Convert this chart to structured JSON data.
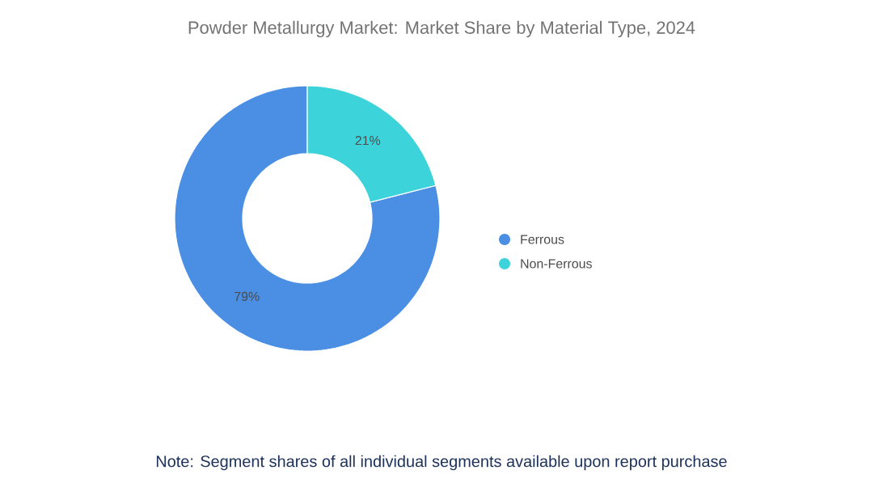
{
  "chart_data": {
    "type": "donut",
    "title": "Powder Metallurgy Market: Market Share by Material Type, 2024",
    "categories": [
      "Ferrous",
      "Non-Ferrous"
    ],
    "values": [
      79,
      21
    ],
    "colors": [
      "#4a8fe3",
      "#3dd3da"
    ],
    "value_labels": [
      "79%",
      "21%"
    ],
    "legend": "right",
    "annotations": [
      "Note: Segment shares of all individual segments available upon report purchase"
    ]
  }
}
